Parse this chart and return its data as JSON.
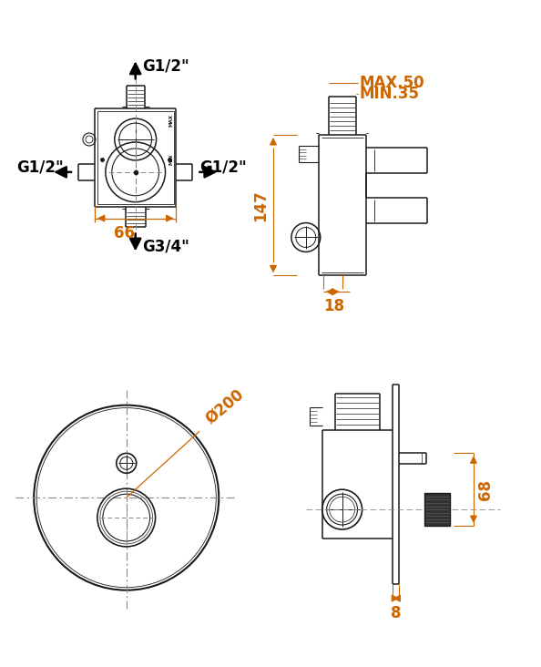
{
  "bg_color": "#ffffff",
  "line_color": "#1a1a1a",
  "dim_color": "#cc6600",
  "black": "#000000",
  "gray": "#888888",
  "dark_gray": "#444444",
  "figsize": [
    5.94,
    7.32
  ],
  "dpi": 100,
  "labels": {
    "top_arrow_label": "G1/2\"",
    "left_arrow_label": "G1/2\"",
    "right_arrow_label": "G1/2\"",
    "bottom_label": "G3/4\"",
    "dim_width": "66",
    "max_label": "MAX.50",
    "min_label": "MIN.35",
    "dim_147": "147",
    "dim_18": "18",
    "dim_200": "Ø200",
    "dim_68": "68",
    "dim_8": "8"
  }
}
